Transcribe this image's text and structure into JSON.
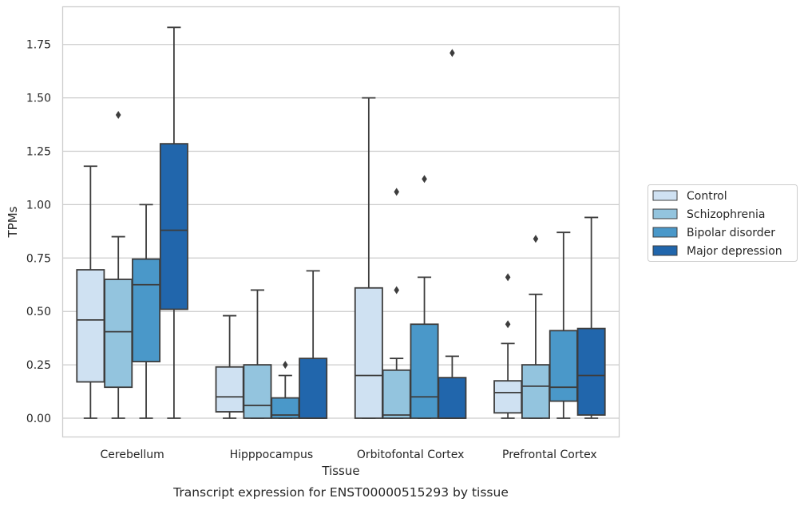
{
  "chart_data": {
    "type": "box",
    "caption": "Transcript expression for ENST00000515293 by tissue",
    "xlabel": "Tissue",
    "ylabel": "TPMs",
    "ylim": [
      -0.09,
      1.92
    ],
    "yticks": [
      "0.00",
      "0.25",
      "0.50",
      "0.75",
      "1.00",
      "1.25",
      "1.50",
      "1.75"
    ],
    "grid": true,
    "legend_position": "right",
    "categories": [
      "Cerebellum",
      "Hipppocampus",
      "Orbitofontal Cortex",
      "Prefrontal Cortex"
    ],
    "series": [
      {
        "name": "Control",
        "color": "#cfe1f2",
        "boxes": [
          {
            "whislo": 0.0,
            "q1": 0.17,
            "med": 0.46,
            "q3": 0.695,
            "whishi": 1.18,
            "fliers": []
          },
          {
            "whislo": 0.0,
            "q1": 0.03,
            "med": 0.1,
            "q3": 0.24,
            "whishi": 0.48,
            "fliers": []
          },
          {
            "whislo": 0.0,
            "q1": 0.0,
            "med": 0.2,
            "q3": 0.61,
            "whishi": 1.5,
            "fliers": []
          },
          {
            "whislo": 0.0,
            "q1": 0.025,
            "med": 0.12,
            "q3": 0.175,
            "whishi": 0.35,
            "fliers": [
              0.44,
              0.66
            ]
          }
        ]
      },
      {
        "name": "Schizophrenia",
        "color": "#93c4de",
        "boxes": [
          {
            "whislo": 0.0,
            "q1": 0.145,
            "med": 0.405,
            "q3": 0.65,
            "whishi": 0.85,
            "fliers": [
              1.42
            ]
          },
          {
            "whislo": 0.0,
            "q1": 0.0,
            "med": 0.06,
            "q3": 0.25,
            "whishi": 0.6,
            "fliers": []
          },
          {
            "whislo": 0.0,
            "q1": 0.0,
            "med": 0.015,
            "q3": 0.225,
            "whishi": 0.28,
            "fliers": [
              0.6,
              1.06
            ]
          },
          {
            "whislo": 0.0,
            "q1": 0.0,
            "med": 0.15,
            "q3": 0.25,
            "whishi": 0.58,
            "fliers": [
              0.84
            ]
          }
        ]
      },
      {
        "name": "Bipolar disorder",
        "color": "#4a98c9",
        "boxes": [
          {
            "whislo": 0.0,
            "q1": 0.265,
            "med": 0.625,
            "q3": 0.745,
            "whishi": 1.0,
            "fliers": []
          },
          {
            "whislo": 0.0,
            "q1": 0.0,
            "med": 0.015,
            "q3": 0.095,
            "whishi": 0.2,
            "fliers": [
              0.25
            ]
          },
          {
            "whislo": 0.0,
            "q1": 0.0,
            "med": 0.1,
            "q3": 0.44,
            "whishi": 0.66,
            "fliers": [
              1.12
            ]
          },
          {
            "whislo": 0.0,
            "q1": 0.08,
            "med": 0.145,
            "q3": 0.41,
            "whishi": 0.87,
            "fliers": []
          }
        ]
      },
      {
        "name": "Major depression",
        "color": "#2166ac",
        "boxes": [
          {
            "whislo": 0.0,
            "q1": 0.51,
            "med": 0.88,
            "q3": 1.285,
            "whishi": 1.83,
            "fliers": []
          },
          {
            "whislo": 0.0,
            "q1": 0.0,
            "med": 0.0,
            "q3": 0.28,
            "whishi": 0.69,
            "fliers": []
          },
          {
            "whislo": 0.0,
            "q1": 0.0,
            "med": 0.0,
            "q3": 0.19,
            "whishi": 0.29,
            "fliers": [
              1.71
            ]
          },
          {
            "whislo": 0.0,
            "q1": 0.015,
            "med": 0.2,
            "q3": 0.42,
            "whishi": 0.94,
            "fliers": []
          }
        ]
      }
    ]
  }
}
